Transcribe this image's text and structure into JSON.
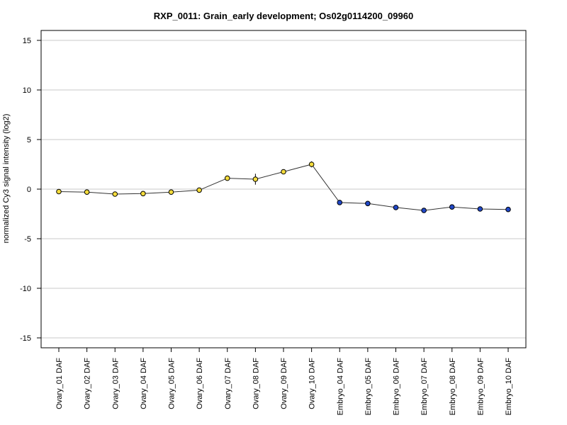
{
  "chart_data": {
    "type": "line",
    "title": "RXP_0011: Grain_early development; Os02g0114200_09960",
    "xlabel": "",
    "ylabel": "normalized Cy3 signal intensity (log2)",
    "ylim": [
      -16,
      16
    ],
    "yticks": [
      -15,
      -10,
      -5,
      0,
      5,
      10,
      15
    ],
    "grid": true,
    "categories": [
      "Ovary_01 DAF",
      "Ovary_02 DAF",
      "Ovary_03 DAF",
      "Ovary_04 DAF",
      "Ovary_05 DAF",
      "Ovary_06 DAF",
      "Ovary_07 DAF",
      "Ovary_08 DAF",
      "Ovary_09 DAF",
      "Ovary_10 DAF",
      "Embryo_04 DAF",
      "Embryo_05 DAF",
      "Embryo_06 DAF",
      "Embryo_07 DAF",
      "Embryo_08 DAF",
      "Embryo_09 DAF",
      "Embryo_10 DAF"
    ],
    "values": [
      -0.25,
      -0.3,
      -0.5,
      -0.45,
      -0.3,
      -0.1,
      1.1,
      1.0,
      1.75,
      2.5,
      -1.35,
      -1.45,
      -1.85,
      -2.15,
      -1.8,
      -2.0,
      -2.05
    ],
    "errors": [
      0.15,
      0.2,
      0.1,
      0.15,
      0.15,
      0.15,
      0.25,
      0.55,
      0.2,
      0.3,
      0.15,
      0.1,
      0.1,
      0.15,
      0.15,
      0.1,
      0.1
    ],
    "point_colors": [
      "#f5dc3c",
      "#f5dc3c",
      "#f5dc3c",
      "#f5dc3c",
      "#f5dc3c",
      "#f5dc3c",
      "#f5dc3c",
      "#f5dc3c",
      "#f5dc3c",
      "#f5dc3c",
      "#2148c8",
      "#2148c8",
      "#2148c8",
      "#2148c8",
      "#2148c8",
      "#2148c8",
      "#2148c8"
    ],
    "line_color": "#333333",
    "grid_color": "#c8c8c8"
  }
}
